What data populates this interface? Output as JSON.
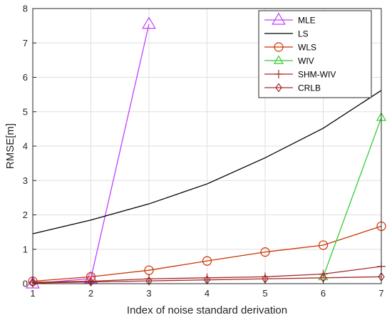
{
  "chart_data": {
    "type": "line",
    "title": "",
    "xlabel": "Index of noise standard derivation",
    "ylabel": "RMSE[m]",
    "x": [
      1,
      2,
      3,
      4,
      5,
      6,
      7
    ],
    "xlim": [
      1,
      7
    ],
    "ylim": [
      0,
      8
    ],
    "x_ticks": [
      "1",
      "2",
      "3",
      "4",
      "5",
      "6",
      "7"
    ],
    "y_ticks": [
      "0",
      "1",
      "2",
      "3",
      "4",
      "5",
      "6",
      "7",
      "8"
    ],
    "grid": true,
    "legend_position": "top-right",
    "series": [
      {
        "name": "MLE",
        "color": "#bf40ff",
        "marker": "triangle",
        "values": [
          0.0,
          0.15,
          7.55,
          null,
          null,
          null,
          null
        ]
      },
      {
        "name": "LS",
        "color": "#000000",
        "marker": "none",
        "values": [
          1.45,
          1.85,
          2.32,
          2.9,
          3.66,
          4.52,
          5.62
        ]
      },
      {
        "name": "WLS",
        "color": "#cc3300",
        "marker": "circle",
        "values": [
          0.07,
          0.2,
          0.39,
          0.66,
          0.92,
          1.12,
          1.67
        ]
      },
      {
        "name": "WIV",
        "color": "#33cc33",
        "marker": "triangle",
        "values": [
          null,
          null,
          null,
          null,
          null,
          0.2,
          4.83
        ]
      },
      {
        "name": "SHM-WIV",
        "color": "#a52a2a",
        "marker": "plus",
        "values": [
          0.04,
          0.07,
          0.14,
          0.17,
          0.2,
          0.28,
          0.5
        ]
      },
      {
        "name": "CRLB",
        "color": "#a52a2a",
        "marker": "diamond",
        "values": [
          0.02,
          0.05,
          0.08,
          0.11,
          0.14,
          0.17,
          0.2
        ]
      }
    ]
  }
}
